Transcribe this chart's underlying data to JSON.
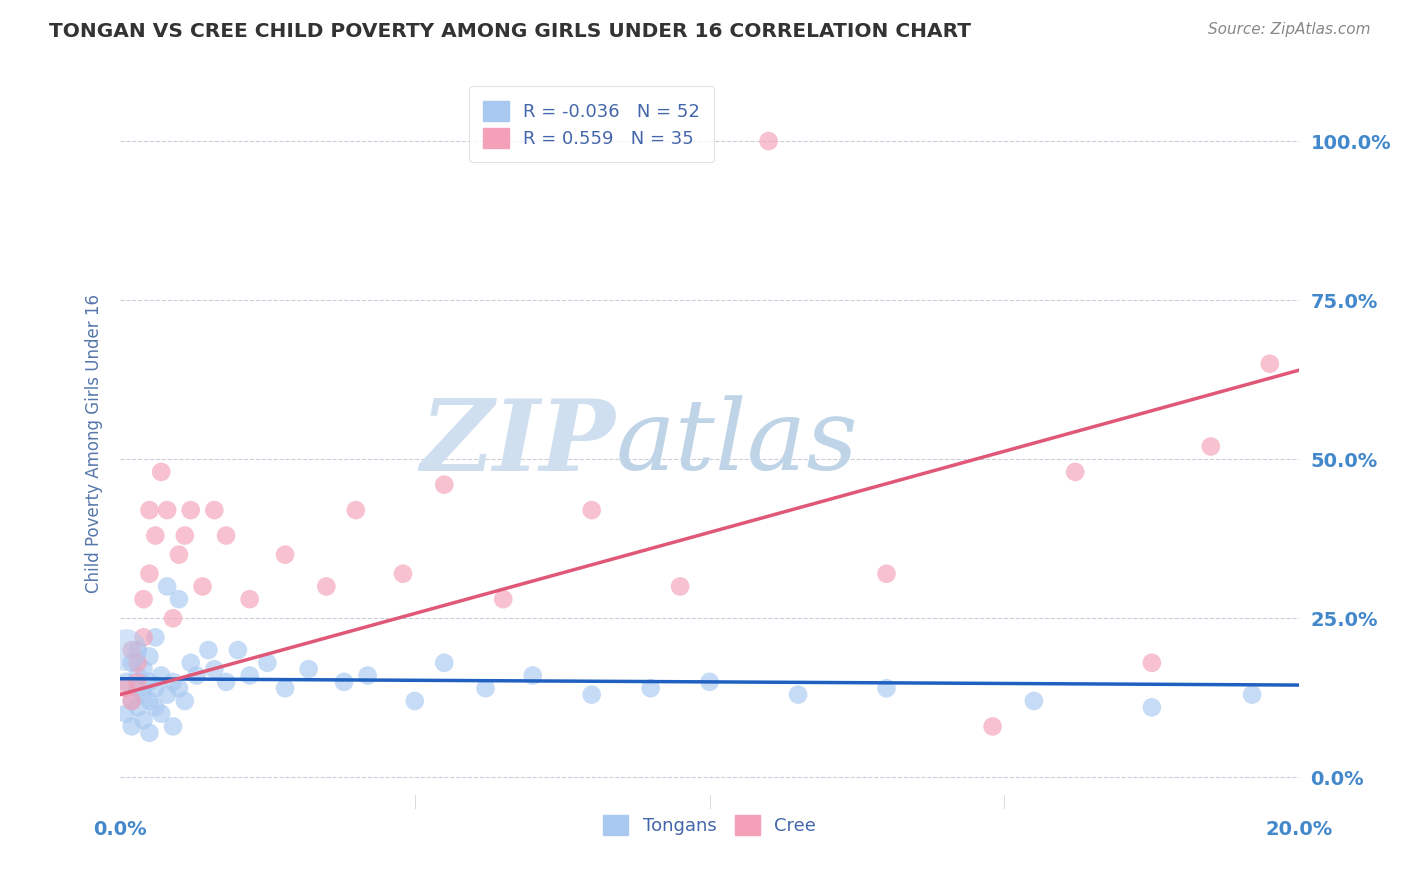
{
  "title": "TONGAN VS CREE CHILD POVERTY AMONG GIRLS UNDER 16 CORRELATION CHART",
  "source": "Source: ZipAtlas.com",
  "ylabel": "Child Poverty Among Girls Under 16",
  "xlim": [
    0.0,
    0.2
  ],
  "ylim": [
    -0.05,
    1.1
  ],
  "xtick_labels": [
    "0.0%",
    "20.0%"
  ],
  "xtick_vals": [
    0.0,
    0.2
  ],
  "ytick_vals": [
    0.0,
    0.25,
    0.5,
    0.75,
    1.0
  ],
  "ytick_labels": [
    "0.0%",
    "25.0%",
    "50.0%",
    "75.0%",
    "100.0%"
  ],
  "legend_r_tongans": "-0.036",
  "legend_n_tongans": "52",
  "legend_r_cree": " 0.559",
  "legend_n_cree": "35",
  "tongan_color": "#A8C8F0",
  "cree_color": "#F4A0B8",
  "tongan_line_color": "#2060C0",
  "cree_line_color": "#E05878",
  "watermark_zip": "ZIP",
  "watermark_atlas": "atlas",
  "watermark_color_zip": "#D0DFF0",
  "watermark_color_atlas": "#C0D4E8",
  "title_color": "#333333",
  "axis_label_color": "#5577AA",
  "tick_label_color": "#4488CC",
  "background_color": "#FFFFFF",
  "grid_color": "#CCCCDD",
  "tongans_x": [
    0.001,
    0.001,
    0.002,
    0.002,
    0.002,
    0.003,
    0.003,
    0.003,
    0.003,
    0.004,
    0.004,
    0.004,
    0.005,
    0.005,
    0.005,
    0.005,
    0.006,
    0.006,
    0.006,
    0.007,
    0.007,
    0.008,
    0.008,
    0.009,
    0.009,
    0.01,
    0.01,
    0.011,
    0.012,
    0.013,
    0.015,
    0.016,
    0.018,
    0.02,
    0.022,
    0.025,
    0.028,
    0.032,
    0.038,
    0.042,
    0.05,
    0.055,
    0.062,
    0.07,
    0.08,
    0.09,
    0.1,
    0.115,
    0.13,
    0.155,
    0.175,
    0.192
  ],
  "tongans_y": [
    0.15,
    0.1,
    0.18,
    0.08,
    0.12,
    0.16,
    0.11,
    0.2,
    0.14,
    0.13,
    0.09,
    0.17,
    0.15,
    0.12,
    0.19,
    0.07,
    0.14,
    0.11,
    0.22,
    0.16,
    0.1,
    0.3,
    0.13,
    0.15,
    0.08,
    0.28,
    0.14,
    0.12,
    0.18,
    0.16,
    0.2,
    0.17,
    0.15,
    0.2,
    0.16,
    0.18,
    0.14,
    0.17,
    0.15,
    0.16,
    0.12,
    0.18,
    0.14,
    0.16,
    0.13,
    0.14,
    0.15,
    0.13,
    0.14,
    0.12,
    0.11,
    0.13
  ],
  "cree_x": [
    0.001,
    0.002,
    0.002,
    0.003,
    0.003,
    0.004,
    0.004,
    0.005,
    0.005,
    0.006,
    0.007,
    0.008,
    0.009,
    0.01,
    0.011,
    0.012,
    0.014,
    0.016,
    0.018,
    0.022,
    0.028,
    0.035,
    0.04,
    0.048,
    0.055,
    0.065,
    0.08,
    0.095,
    0.11,
    0.13,
    0.148,
    0.162,
    0.175,
    0.185,
    0.195
  ],
  "cree_y": [
    0.14,
    0.12,
    0.2,
    0.18,
    0.15,
    0.22,
    0.28,
    0.32,
    0.42,
    0.38,
    0.48,
    0.42,
    0.25,
    0.35,
    0.38,
    0.42,
    0.3,
    0.42,
    0.38,
    0.28,
    0.35,
    0.3,
    0.42,
    0.32,
    0.46,
    0.28,
    0.42,
    0.3,
    1.0,
    0.32,
    0.08,
    0.48,
    0.18,
    0.52,
    0.65
  ]
}
